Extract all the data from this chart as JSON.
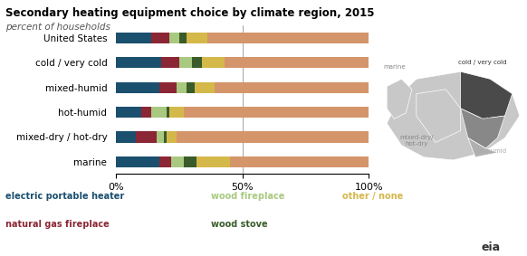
{
  "title": "Secondary heating equipment choice by climate region, 2015",
  "subtitle": "percent of households",
  "categories": [
    "United States",
    "cold / very cold",
    "mixed-humid",
    "hot-humid",
    "mixed-dry / hot-dry",
    "marine"
  ],
  "series": {
    "electric_portable_heater": [
      14,
      18,
      17,
      10,
      8,
      17
    ],
    "natural_gas_fireplace": [
      7,
      7,
      7,
      4,
      8,
      5
    ],
    "wood_fireplace": [
      4,
      5,
      4,
      6,
      3,
      5
    ],
    "wood_stove": [
      3,
      4,
      3,
      1,
      1,
      5
    ],
    "other_none": [
      8,
      9,
      8,
      6,
      4,
      13
    ],
    "remaining": [
      64,
      57,
      61,
      73,
      76,
      55
    ]
  },
  "colors": {
    "electric_portable_heater": "#1a4f6e",
    "natural_gas_fireplace": "#8b2635",
    "wood_fireplace": "#a8c97f",
    "wood_stove": "#3a5c2a",
    "other_none": "#d4b84a",
    "remaining": "#d4956a"
  },
  "legend_labels": {
    "electric_portable_heater": "electric portable heater",
    "natural_gas_fireplace": "natural gas fireplace",
    "wood_fireplace": "wood fireplace",
    "wood_stove": "wood stove",
    "other_none": "other / none"
  },
  "legend_colors": {
    "electric_portable_heater": "#1a4f6e",
    "natural_gas_fireplace": "#8b2635",
    "wood_fireplace": "#a8c97f",
    "wood_stove": "#3a5c2a",
    "other_none": "#d4b84a"
  },
  "bar_height": 0.45,
  "figsize": [
    5.82,
    2.83
  ],
  "dpi": 100
}
